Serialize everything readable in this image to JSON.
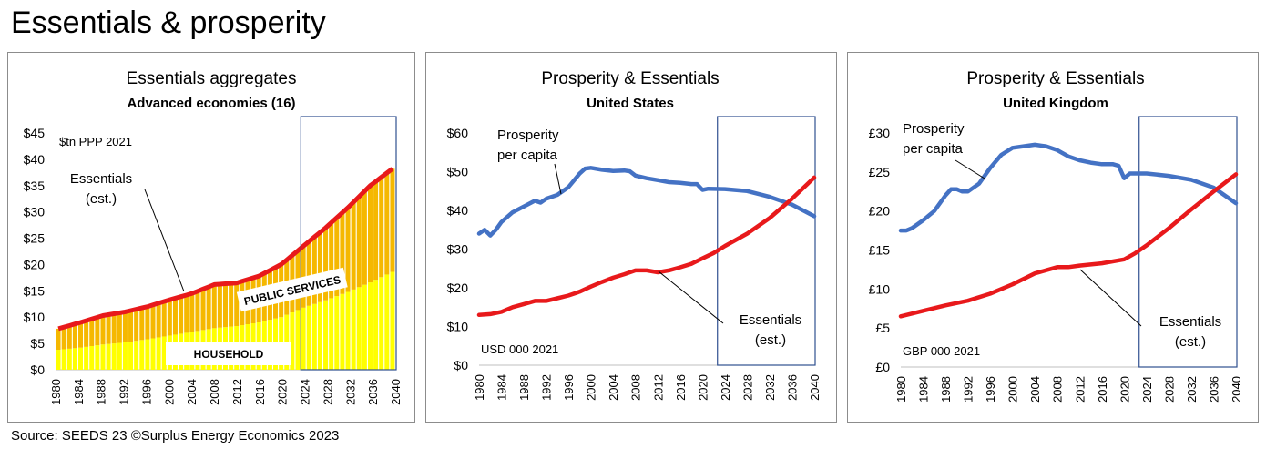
{
  "slide": {
    "title": "Essentials & prosperity",
    "source": "Source: SEEDS 23  ©Surplus Energy Economics 2023"
  },
  "chart_data": [
    {
      "type": "area",
      "title": "Essentials aggregates",
      "subtitle": "Advanced economies (16)",
      "unit_note": "$tn PPP 2021",
      "ylim": [
        0,
        45
      ],
      "y_ticks": [
        "$0",
        "$5",
        "$10",
        "$15",
        "$20",
        "$25",
        "$30",
        "$35",
        "$40",
        "$45"
      ],
      "x_ticks": [
        "1980",
        "1984",
        "1988",
        "1992",
        "1996",
        "2000",
        "2004",
        "2008",
        "2012",
        "2016",
        "2020",
        "2024",
        "2028",
        "2032",
        "2036",
        "2040"
      ],
      "forecast_start": 2023,
      "colors": {
        "household": "#ffff00",
        "public": "#f5b800",
        "line": "#e8191b"
      },
      "series": [
        {
          "name": "HOUSEHOLD",
          "x": [
            1980,
            1984,
            1988,
            1992,
            1996,
            2000,
            2004,
            2008,
            2012,
            2016,
            2020,
            2024,
            2028,
            2032,
            2036,
            2040
          ],
          "values": [
            3.8,
            4.2,
            4.8,
            5.2,
            5.8,
            6.5,
            7.2,
            7.9,
            8.3,
            9.0,
            10.0,
            11.8,
            13.2,
            14.8,
            16.6,
            18.6
          ]
        },
        {
          "name": "PUBLIC SERVICES",
          "x": [
            1980,
            1984,
            1988,
            1992,
            1996,
            2000,
            2004,
            2008,
            2012,
            2016,
            2020,
            2024,
            2028,
            2032,
            2036,
            2040
          ],
          "values": [
            4.0,
            4.8,
            5.5,
            5.8,
            6.2,
            6.8,
            7.3,
            8.3,
            8.2,
            8.8,
            10.0,
            11.7,
            13.8,
            16.0,
            18.4,
            19.6
          ]
        }
      ],
      "total": {
        "name": "Essentials (est.)",
        "x": [
          1980,
          1984,
          1988,
          1992,
          1996,
          2000,
          2004,
          2008,
          2012,
          2016,
          2020,
          2024,
          2028,
          2032,
          2036,
          2040
        ],
        "values": [
          7.8,
          9.0,
          10.3,
          11.0,
          12.0,
          13.3,
          14.5,
          16.2,
          16.5,
          17.8,
          20.0,
          23.5,
          27.0,
          30.8,
          35.0,
          38.2
        ]
      },
      "labels": {
        "essentials": [
          "Essentials",
          "(est.)"
        ],
        "public": "PUBLIC SERVICES",
        "household": "HOUSEHOLD"
      }
    },
    {
      "type": "line",
      "title": "Prosperity & Essentials",
      "subtitle": "United States",
      "unit_note": "USD 000 2021",
      "ylim": [
        0,
        60
      ],
      "y_ticks": [
        "$0",
        "$10",
        "$20",
        "$30",
        "$40",
        "$50",
        "$60"
      ],
      "x_ticks": [
        "1980",
        "1984",
        "1988",
        "1992",
        "1996",
        "2000",
        "2004",
        "2008",
        "2012",
        "2016",
        "2020",
        "2024",
        "2028",
        "2032",
        "2036",
        "2040"
      ],
      "forecast_start": 2023,
      "series": [
        {
          "name": "Prosperity per capita",
          "color": "#4472c4",
          "x": [
            1980,
            1981,
            1982,
            1983,
            1984,
            1986,
            1988,
            1990,
            1991,
            1992,
            1994,
            1996,
            1998,
            1999,
            2000,
            2002,
            2004,
            2006,
            2007,
            2008,
            2010,
            2012,
            2014,
            2016,
            2018,
            2019,
            2020,
            2021,
            2024,
            2028,
            2032,
            2036,
            2040
          ],
          "values": [
            34,
            35,
            33.5,
            35,
            37,
            39.5,
            41,
            42.5,
            42,
            43,
            44,
            46,
            49.5,
            50.8,
            51,
            50.5,
            50.2,
            50.3,
            50.1,
            49,
            48.3,
            47.8,
            47.3,
            47.1,
            46.8,
            46.8,
            45.3,
            45.6,
            45.5,
            45,
            43.5,
            41.5,
            38.5
          ]
        },
        {
          "name": "Essentials (est.)",
          "color": "#e8191b",
          "x": [
            1980,
            1982,
            1984,
            1986,
            1988,
            1990,
            1992,
            1994,
            1996,
            1998,
            2000,
            2002,
            2004,
            2006,
            2008,
            2010,
            2012,
            2014,
            2016,
            2018,
            2020,
            2022,
            2024,
            2028,
            2032,
            2036,
            2040
          ],
          "values": [
            13,
            13.2,
            13.8,
            15,
            15.8,
            16.6,
            16.6,
            17.3,
            18,
            19,
            20.3,
            21.5,
            22.6,
            23.5,
            24.5,
            24.5,
            24,
            24.5,
            25.3,
            26.2,
            27.6,
            29,
            30.8,
            34,
            38,
            43,
            48.5
          ]
        }
      ],
      "labels": {
        "prosperity": [
          "Prosperity",
          "per capita"
        ],
        "essentials": [
          "Essentials",
          "(est.)"
        ]
      }
    },
    {
      "type": "line",
      "title": "Prosperity & Essentials",
      "subtitle": "United Kingdom",
      "unit_note": "GBP 000 2021",
      "ylim": [
        0,
        30
      ],
      "y_ticks": [
        "£0",
        "£5",
        "£10",
        "£15",
        "£20",
        "£25",
        "£30"
      ],
      "x_ticks": [
        "1980",
        "1984",
        "1988",
        "1992",
        "1996",
        "2000",
        "2004",
        "2008",
        "2012",
        "2016",
        "2020",
        "2024",
        "2028",
        "2032",
        "2036",
        "2040"
      ],
      "forecast_start": 2023,
      "series": [
        {
          "name": "Prosperity per capita",
          "color": "#4472c4",
          "x": [
            1980,
            1981,
            1982,
            1984,
            1986,
            1988,
            1989,
            1990,
            1991,
            1992,
            1994,
            1996,
            1998,
            2000,
            2002,
            2004,
            2006,
            2008,
            2010,
            2012,
            2014,
            2016,
            2018,
            2019,
            2020,
            2021,
            2024,
            2028,
            2032,
            2036,
            2040
          ],
          "values": [
            17.5,
            17.5,
            17.8,
            18.8,
            20,
            22,
            22.8,
            22.8,
            22.5,
            22.5,
            23.5,
            25.5,
            27.2,
            28.1,
            28.3,
            28.5,
            28.3,
            27.8,
            27,
            26.5,
            26.2,
            26,
            26,
            25.8,
            24.2,
            24.8,
            24.8,
            24.5,
            24,
            23,
            21
          ]
        },
        {
          "name": "Essentials (est.)",
          "color": "#e8191b",
          "x": [
            1980,
            1984,
            1988,
            1992,
            1996,
            2000,
            2004,
            2008,
            2010,
            2012,
            2016,
            2020,
            2022,
            2024,
            2028,
            2032,
            2036,
            2040
          ],
          "values": [
            6.5,
            7.2,
            7.9,
            8.5,
            9.4,
            10.6,
            12,
            12.8,
            12.8,
            13,
            13.3,
            13.8,
            14.6,
            15.6,
            17.8,
            20.2,
            22.5,
            24.7
          ]
        }
      ],
      "labels": {
        "prosperity": [
          "Prosperity",
          "per capita"
        ],
        "essentials": [
          "Essentials",
          "(est.)"
        ]
      }
    }
  ]
}
